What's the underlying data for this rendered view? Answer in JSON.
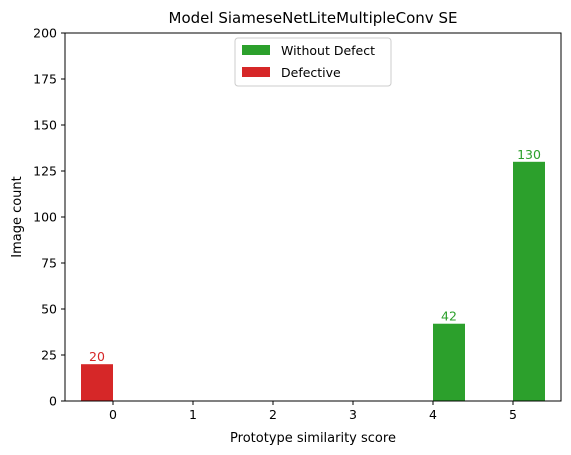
{
  "chart_data": {
    "type": "bar",
    "title": "Model SiameseNetLiteMultipleConv SE",
    "xlabel": "Prototype similarity score",
    "ylabel": "Image count",
    "categories": [
      "0",
      "1",
      "2",
      "3",
      "4",
      "5"
    ],
    "x": [
      0,
      1,
      2,
      3,
      4,
      5
    ],
    "ylim": [
      0,
      200
    ],
    "yticks": [
      0,
      25,
      50,
      75,
      100,
      125,
      150,
      175,
      200
    ],
    "grid": false,
    "legend_position": "top-center",
    "series": [
      {
        "name": "Without Defect",
        "color": "#2ca02c",
        "values": [
          0,
          0,
          0,
          0,
          42,
          130
        ],
        "labels": [
          "",
          "",
          "",
          "",
          "42",
          "130"
        ]
      },
      {
        "name": "Defective",
        "color": "#d62728",
        "values": [
          20,
          0,
          0,
          0,
          0,
          0
        ],
        "labels": [
          "20",
          "",
          "",
          "",
          "",
          ""
        ]
      }
    ]
  }
}
